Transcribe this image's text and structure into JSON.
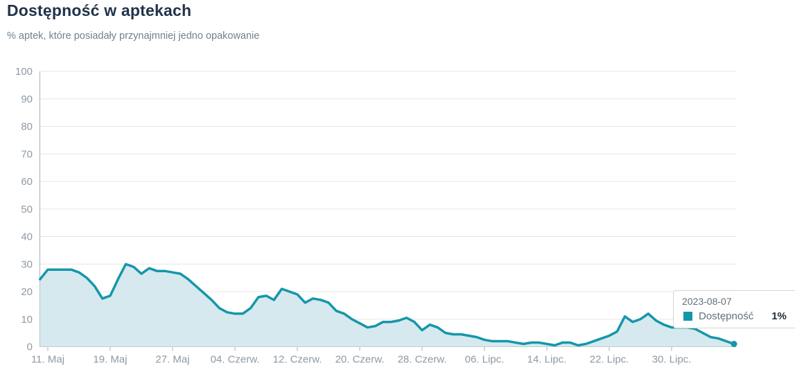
{
  "header": {
    "title": "Dostępność w aptekach",
    "subtitle": "% aptek, które posiadały przynajmniej jedno opakowanie"
  },
  "tooltip": {
    "date": "2023-08-07",
    "series": "Dostępność",
    "value": "1%"
  },
  "colors": {
    "line": "#1596aa",
    "fill": "#d5e9ef",
    "grid": "#e6e6e6",
    "axis": "#a6b2bb",
    "label": "#8f99a2",
    "title": "#22334a",
    "subtitle": "#71808d"
  },
  "chart_data": {
    "type": "area",
    "title": "Dostępność w aptekach",
    "subtitle": "% aptek, które posiadały przynajmniej jedno opakowanie",
    "series_name": "Dostępność",
    "ylabel": "",
    "xlabel": "",
    "ylim": [
      0,
      100
    ],
    "grid": "horizontal",
    "legend_position": "none",
    "yticks": [
      0,
      10,
      20,
      30,
      40,
      50,
      60,
      70,
      80,
      90,
      100
    ],
    "xticks": [
      {
        "label": "11. Maj",
        "i": 1
      },
      {
        "label": "19. Maj",
        "i": 9
      },
      {
        "label": "27. Maj",
        "i": 17
      },
      {
        "label": "04. Czerw.",
        "i": 25
      },
      {
        "label": "12. Czerw.",
        "i": 33
      },
      {
        "label": "20. Czerw.",
        "i": 41
      },
      {
        "label": "28. Czerw.",
        "i": 49
      },
      {
        "label": "06. Lipc.",
        "i": 57
      },
      {
        "label": "14. Lipc.",
        "i": 65
      },
      {
        "label": "22. Lipc.",
        "i": 73
      },
      {
        "label": "30. Lipc.",
        "i": 81
      }
    ],
    "dates": [
      "2023-05-10",
      "2023-05-11",
      "2023-05-12",
      "2023-05-13",
      "2023-05-14",
      "2023-05-15",
      "2023-05-16",
      "2023-05-17",
      "2023-05-18",
      "2023-05-19",
      "2023-05-20",
      "2023-05-21",
      "2023-05-22",
      "2023-05-23",
      "2023-05-24",
      "2023-05-25",
      "2023-05-26",
      "2023-05-27",
      "2023-05-28",
      "2023-05-29",
      "2023-05-30",
      "2023-05-31",
      "2023-06-01",
      "2023-06-02",
      "2023-06-03",
      "2023-06-04",
      "2023-06-05",
      "2023-06-06",
      "2023-06-07",
      "2023-06-08",
      "2023-06-09",
      "2023-06-10",
      "2023-06-11",
      "2023-06-12",
      "2023-06-13",
      "2023-06-14",
      "2023-06-15",
      "2023-06-16",
      "2023-06-17",
      "2023-06-18",
      "2023-06-19",
      "2023-06-20",
      "2023-06-21",
      "2023-06-22",
      "2023-06-23",
      "2023-06-24",
      "2023-06-25",
      "2023-06-26",
      "2023-06-27",
      "2023-06-28",
      "2023-06-29",
      "2023-06-30",
      "2023-07-01",
      "2023-07-02",
      "2023-07-03",
      "2023-07-04",
      "2023-07-05",
      "2023-07-06",
      "2023-07-07",
      "2023-07-08",
      "2023-07-09",
      "2023-07-10",
      "2023-07-11",
      "2023-07-12",
      "2023-07-13",
      "2023-07-14",
      "2023-07-15",
      "2023-07-16",
      "2023-07-17",
      "2023-07-18",
      "2023-07-19",
      "2023-07-20",
      "2023-07-21",
      "2023-07-22",
      "2023-07-23",
      "2023-07-24",
      "2023-07-25",
      "2023-07-26",
      "2023-07-27",
      "2023-07-28",
      "2023-07-29",
      "2023-07-30",
      "2023-07-31",
      "2023-08-01",
      "2023-08-02",
      "2023-08-03",
      "2023-08-04",
      "2023-08-05",
      "2023-08-06",
      "2023-08-07"
    ],
    "values": [
      24.5,
      28,
      28,
      28,
      28,
      27,
      25,
      22,
      17.5,
      18.5,
      24.5,
      30,
      29,
      26.5,
      28.5,
      27.5,
      27.5,
      27,
      26.5,
      24.5,
      22,
      19.5,
      17,
      14,
      12.5,
      12,
      12,
      14,
      18,
      18.5,
      17,
      21,
      20,
      19,
      16,
      17.5,
      17,
      16,
      13,
      12,
      10,
      8.5,
      7,
      7.5,
      9,
      9,
      9.5,
      10.5,
      9,
      6,
      8,
      7,
      5,
      4.5,
      4.5,
      4,
      3.5,
      2.5,
      2,
      2,
      2,
      1.5,
      1,
      1.5,
      1.5,
      1,
      0.5,
      1.5,
      1.5,
      0.5,
      1,
      2,
      3,
      4,
      5.5,
      11,
      9,
      10,
      12,
      9.5,
      8,
      7,
      7,
      7,
      6.5,
      5,
      3.5,
      3,
      2,
      1
    ]
  }
}
